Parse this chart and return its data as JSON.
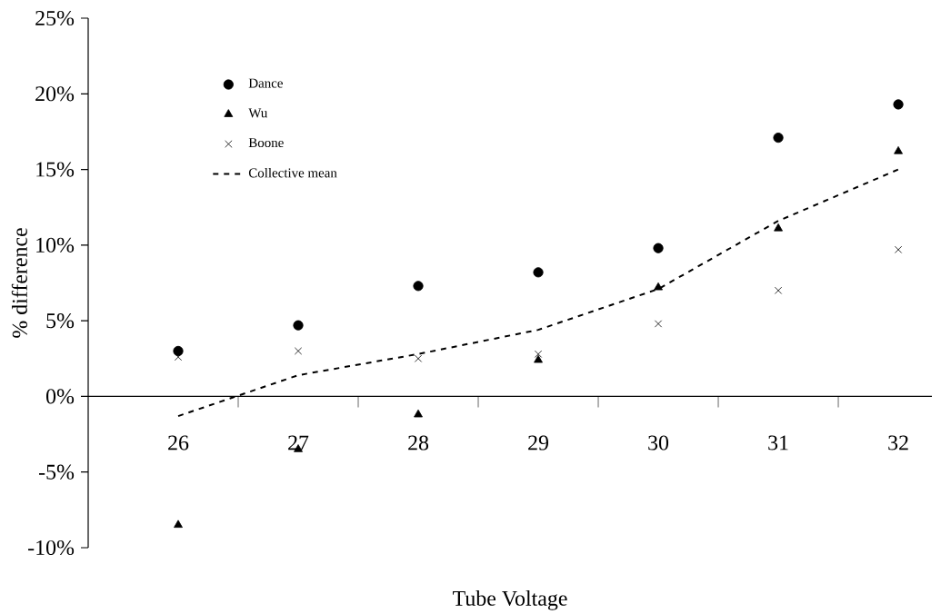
{
  "chart_data": {
    "type": "scatter",
    "xlabel": "Tube Voltage",
    "ylabel": "% difference",
    "categories": [
      "26",
      "27",
      "28",
      "29",
      "30",
      "31",
      "32"
    ],
    "ylim": [
      -10,
      25
    ],
    "yticks": [
      {
        "value": -10,
        "label": "-10%"
      },
      {
        "value": -5,
        "label": "-5%"
      },
      {
        "value": 0,
        "label": "0%"
      },
      {
        "value": 5,
        "label": "5%"
      },
      {
        "value": 10,
        "label": "10%"
      },
      {
        "value": 15,
        "label": "15%"
      },
      {
        "value": 20,
        "label": "20%"
      },
      {
        "value": 25,
        "label": "25%"
      }
    ],
    "legend": "top left",
    "series": [
      {
        "name": "Dance",
        "marker": "circle",
        "color": "#000000",
        "values": [
          3.0,
          4.7,
          7.3,
          8.2,
          9.8,
          17.1,
          19.3
        ]
      },
      {
        "name": "Wu",
        "marker": "triangle",
        "color": "#000000",
        "values": [
          -8.5,
          -3.5,
          -1.2,
          2.4,
          7.2,
          11.1,
          16.2
        ]
      },
      {
        "name": "Boone",
        "marker": "cross",
        "color": "#000000",
        "values": [
          2.6,
          3.0,
          2.5,
          2.8,
          4.8,
          7.0,
          9.7
        ]
      },
      {
        "name": "Collective mean",
        "type": "line",
        "marker": "none",
        "line_style": "dashed",
        "color": "#000000",
        "values": [
          -1.3,
          1.4,
          2.8,
          4.4,
          7.1,
          11.6,
          15.0
        ]
      }
    ]
  }
}
